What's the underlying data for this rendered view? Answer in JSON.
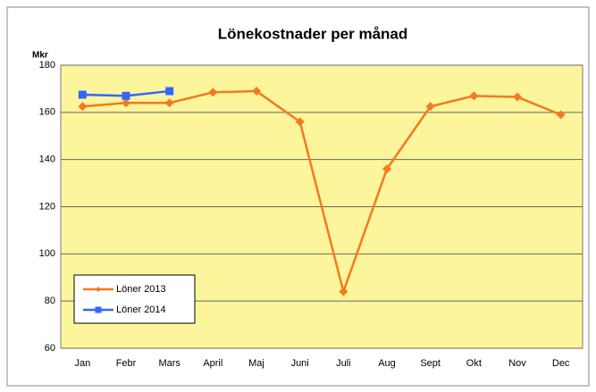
{
  "chart_data": {
    "type": "line",
    "title": "Lönekostnader per månad",
    "y_label": "Mkr",
    "categories": [
      "Jan",
      "Febr",
      "Mars",
      "April",
      "Maj",
      "Juni",
      "Juli",
      "Aug",
      "Sept",
      "Okt",
      "Nov",
      "Dec"
    ],
    "series": [
      {
        "name": "Löner 2013",
        "color": "#f47a1f",
        "marker": "diamond",
        "values": [
          162.5,
          164,
          164,
          168.5,
          169,
          156,
          84,
          136,
          162.5,
          167,
          166.5,
          159
        ]
      },
      {
        "name": "Löner 2014",
        "color": "#3366ff",
        "marker": "square",
        "values": [
          167.5,
          167,
          169,
          null,
          null,
          null,
          null,
          null,
          null,
          null,
          null,
          null
        ]
      }
    ],
    "ylim": [
      60,
      180
    ],
    "yticks": [
      60,
      80,
      100,
      120,
      140,
      160,
      180
    ],
    "grid": true,
    "legend": "lower left"
  }
}
